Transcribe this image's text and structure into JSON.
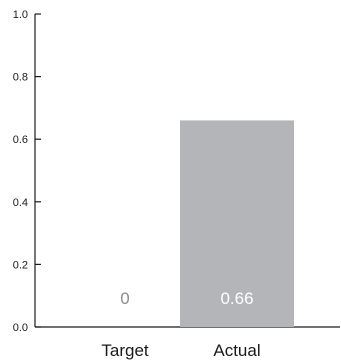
{
  "chart_data": {
    "type": "bar",
    "categories": [
      "Target",
      "Actual"
    ],
    "values": [
      0,
      0.66
    ],
    "data_labels": [
      "0",
      "0.66"
    ],
    "ylim": [
      0,
      1.0
    ],
    "yticks": [
      0.0,
      0.2,
      0.4,
      0.6,
      0.8,
      1.0
    ],
    "ytick_labels": [
      "0.0",
      "0.2",
      "0.4",
      "0.6",
      "0.8",
      "1.0"
    ],
    "title": "",
    "xlabel": "",
    "ylabel": "",
    "grid": false,
    "colors": {
      "bar": "#b3b5b8",
      "label_on_bar": "#ffffff",
      "label_off_bar": "#8a8c8f",
      "axis": "#1a1a1a"
    }
  }
}
